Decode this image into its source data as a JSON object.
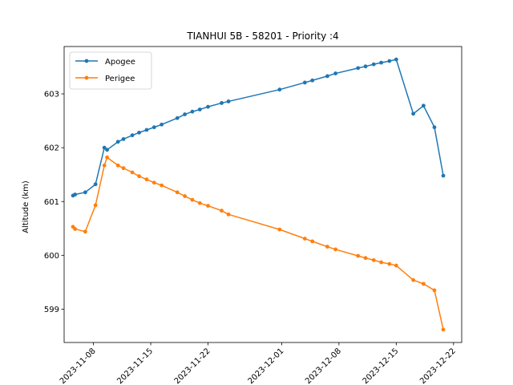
{
  "chart_data": {
    "type": "line",
    "title": "TIANHUI 5B - 58201 - Priority :4",
    "xlabel": "",
    "ylabel": "Altitude (km)",
    "x_ticks": [
      "2023-11-08",
      "2023-11-15",
      "2023-11-22",
      "2023-12-01",
      "2023-12-08",
      "2023-12-15",
      "2023-12-22"
    ],
    "y_ticks": [
      "599",
      "600",
      "601",
      "602",
      "603"
    ],
    "xlim": [
      "2023-11-04T10:00",
      "2023-12-23T00:00"
    ],
    "ylim": [
      598.38,
      603.88
    ],
    "grid": false,
    "legend_position": "top-left",
    "series": [
      {
        "name": "Apogee",
        "color": "#1f77b4",
        "points": [
          [
            "2023-11-05T12:00",
            601.11
          ],
          [
            "2023-11-05T18:00",
            601.13
          ],
          [
            "2023-11-07T00:00",
            601.17
          ],
          [
            "2023-11-08T06:00",
            601.32
          ],
          [
            "2023-11-09T08:00",
            602.0
          ],
          [
            "2023-11-09T16:00",
            601.96
          ],
          [
            "2023-11-11T00:00",
            602.11
          ],
          [
            "2023-11-11T16:00",
            602.16
          ],
          [
            "2023-11-12T18:00",
            602.23
          ],
          [
            "2023-11-13T14:00",
            602.28
          ],
          [
            "2023-11-14T12:00",
            602.33
          ],
          [
            "2023-11-15T10:00",
            602.38
          ],
          [
            "2023-11-16T08:00",
            602.43
          ],
          [
            "2023-11-18T06:00",
            602.55
          ],
          [
            "2023-11-19T04:00",
            602.62
          ],
          [
            "2023-11-20T02:00",
            602.67
          ],
          [
            "2023-11-21T00:00",
            602.71
          ],
          [
            "2023-11-22T00:00",
            602.76
          ],
          [
            "2023-11-23T16:00",
            602.83
          ],
          [
            "2023-11-24T12:00",
            602.86
          ],
          [
            "2023-11-30T18:00",
            603.08
          ],
          [
            "2023-12-03T20:00",
            603.21
          ],
          [
            "2023-12-04T18:00",
            603.25
          ],
          [
            "2023-12-06T14:00",
            603.33
          ],
          [
            "2023-12-07T14:00",
            603.38
          ],
          [
            "2023-12-10T08:00",
            603.48
          ],
          [
            "2023-12-11T06:00",
            603.51
          ],
          [
            "2023-12-12T06:00",
            603.55
          ],
          [
            "2023-12-13T04:00",
            603.58
          ],
          [
            "2023-12-14T04:00",
            603.61
          ],
          [
            "2023-12-15T00:00",
            603.64
          ],
          [
            "2023-12-17T02:00",
            602.63
          ],
          [
            "2023-12-18T08:00",
            602.78
          ],
          [
            "2023-12-19T16:00",
            602.38
          ],
          [
            "2023-12-20T18:00",
            601.48
          ]
        ]
      },
      {
        "name": "Perigee",
        "color": "#ff7f0e",
        "points": [
          [
            "2023-11-05T12:00",
            600.53
          ],
          [
            "2023-11-05T18:00",
            600.49
          ],
          [
            "2023-11-07T00:00",
            600.44
          ],
          [
            "2023-11-08T06:00",
            600.93
          ],
          [
            "2023-11-09T08:00",
            601.67
          ],
          [
            "2023-11-09T16:00",
            601.82
          ],
          [
            "2023-11-11T00:00",
            601.67
          ],
          [
            "2023-11-11T16:00",
            601.62
          ],
          [
            "2023-11-12T18:00",
            601.54
          ],
          [
            "2023-11-13T14:00",
            601.47
          ],
          [
            "2023-11-14T12:00",
            601.41
          ],
          [
            "2023-11-15T10:00",
            601.35
          ],
          [
            "2023-11-16T08:00",
            601.3
          ],
          [
            "2023-11-18T06:00",
            601.17
          ],
          [
            "2023-11-19T04:00",
            601.1
          ],
          [
            "2023-11-20T02:00",
            601.03
          ],
          [
            "2023-11-21T00:00",
            600.97
          ],
          [
            "2023-11-22T00:00",
            600.92
          ],
          [
            "2023-11-23T16:00",
            600.83
          ],
          [
            "2023-11-24T12:00",
            600.76
          ],
          [
            "2023-11-30T18:00",
            600.48
          ],
          [
            "2023-12-03T20:00",
            600.31
          ],
          [
            "2023-12-04T18:00",
            600.26
          ],
          [
            "2023-12-06T14:00",
            600.16
          ],
          [
            "2023-12-07T14:00",
            600.11
          ],
          [
            "2023-12-10T08:00",
            599.99
          ],
          [
            "2023-12-11T06:00",
            599.95
          ],
          [
            "2023-12-12T06:00",
            599.91
          ],
          [
            "2023-12-13T04:00",
            599.87
          ],
          [
            "2023-12-14T04:00",
            599.84
          ],
          [
            "2023-12-15T00:00",
            599.81
          ],
          [
            "2023-12-17T02:00",
            599.54
          ],
          [
            "2023-12-18T08:00",
            599.47
          ],
          [
            "2023-12-19T16:00",
            599.35
          ],
          [
            "2023-12-20T18:00",
            598.62
          ]
        ]
      }
    ]
  }
}
